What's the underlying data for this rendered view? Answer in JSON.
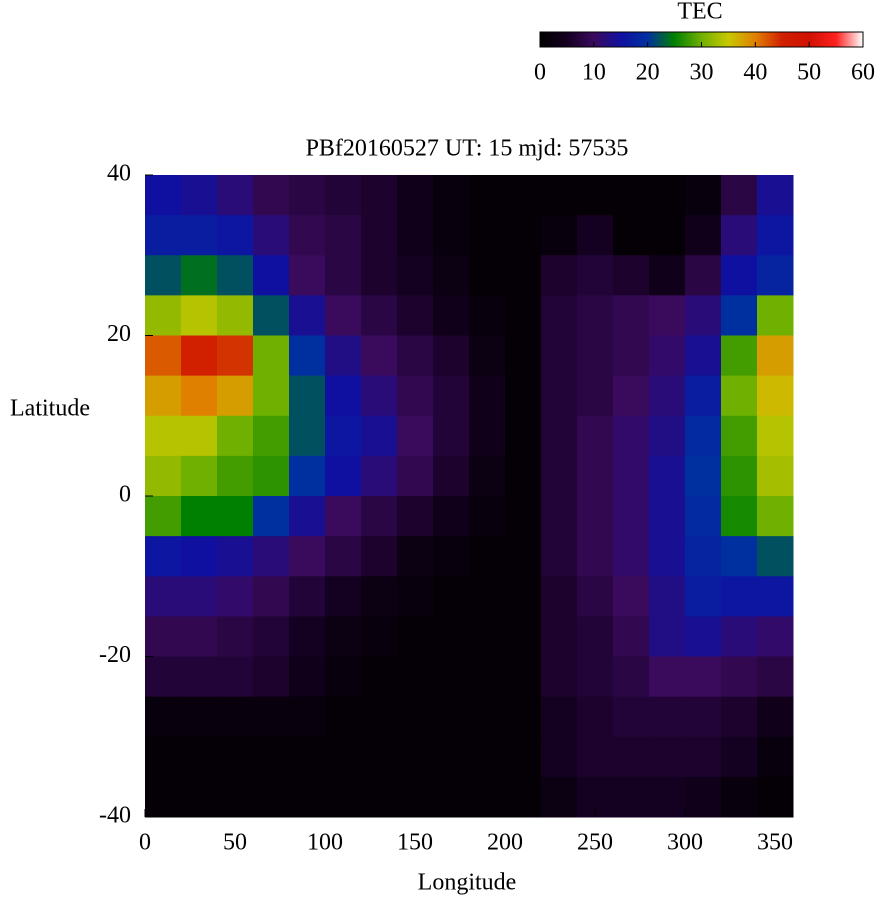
{
  "chart_data": {
    "type": "heatmap",
    "title": "PBf20160527  UT: 15  mjd: 57535",
    "x_label": "Longitude",
    "y_label": "Latitude",
    "xlim": [
      0,
      360
    ],
    "xticks": [
      0,
      50,
      100,
      150,
      200,
      250,
      300,
      350
    ],
    "ylim": [
      -40,
      40
    ],
    "yticks": [
      -40,
      -20,
      0,
      20,
      40
    ],
    "x": [
      10,
      30,
      50,
      70,
      90,
      110,
      130,
      150,
      170,
      190,
      210,
      230,
      250,
      270,
      290,
      310,
      330,
      350
    ],
    "y": [
      37.5,
      32.5,
      27.5,
      22.5,
      17.5,
      12.5,
      7.5,
      2.5,
      -2.5,
      -7.5,
      -12.5,
      -17.5,
      -22.5,
      -27.5,
      -32.5,
      -37.5
    ],
    "values": [
      [
        15,
        14,
        12,
        9,
        8,
        7,
        6,
        4,
        2,
        1,
        1,
        1,
        1,
        1,
        1,
        2,
        8,
        14
      ],
      [
        17,
        17,
        16,
        12,
        9,
        8,
        6,
        4,
        2,
        1,
        1,
        2,
        5,
        1,
        1,
        4,
        12,
        16
      ],
      [
        22,
        24,
        22,
        15,
        10,
        8,
        6,
        5,
        3,
        1,
        1,
        6,
        7,
        6,
        4,
        8,
        15,
        18
      ],
      [
        32,
        34,
        32,
        22,
        14,
        10,
        8,
        6,
        4,
        2,
        1,
        7,
        8,
        9,
        10,
        12,
        20,
        30
      ],
      [
        42,
        45,
        44,
        30,
        20,
        13,
        10,
        8,
        6,
        3,
        1,
        7,
        8,
        9,
        11,
        14,
        28,
        38
      ],
      [
        38,
        40,
        38,
        30,
        22,
        15,
        12,
        9,
        7,
        4,
        1,
        7,
        8,
        10,
        12,
        17,
        30,
        36
      ],
      [
        34,
        34,
        30,
        28,
        22,
        16,
        14,
        10,
        7,
        4,
        1,
        7,
        9,
        11,
        13,
        19,
        28,
        34
      ],
      [
        32,
        30,
        28,
        27,
        20,
        15,
        12,
        9,
        6,
        3,
        1,
        7,
        9,
        11,
        14,
        20,
        27,
        33
      ],
      [
        28,
        25,
        25,
        20,
        14,
        10,
        8,
        6,
        4,
        2,
        1,
        7,
        9,
        11,
        14,
        19,
        26,
        30
      ],
      [
        16,
        15,
        14,
        12,
        10,
        8,
        6,
        3,
        2,
        1,
        1,
        7,
        9,
        11,
        14,
        18,
        20,
        22
      ],
      [
        12,
        12,
        11,
        9,
        7,
        5,
        3,
        2,
        1,
        1,
        1,
        6,
        8,
        10,
        13,
        17,
        16,
        16
      ],
      [
        9,
        9,
        8,
        7,
        5,
        3,
        2,
        1,
        1,
        1,
        1,
        6,
        7,
        9,
        13,
        14,
        12,
        11
      ],
      [
        7,
        7,
        7,
        6,
        4,
        2,
        1,
        1,
        1,
        1,
        1,
        6,
        7,
        8,
        10,
        10,
        9,
        8
      ],
      [
        2,
        2,
        2,
        2,
        2,
        1,
        1,
        1,
        1,
        1,
        1,
        5,
        6,
        7,
        7,
        7,
        6,
        4
      ],
      [
        1,
        1,
        1,
        1,
        1,
        1,
        1,
        1,
        1,
        1,
        1,
        5,
        6,
        6,
        6,
        6,
        5,
        2
      ],
      [
        1,
        1,
        1,
        1,
        1,
        1,
        1,
        1,
        1,
        1,
        1,
        3,
        5,
        5,
        5,
        4,
        2,
        1
      ]
    ],
    "colorbar": {
      "label": "TEC",
      "lim": [
        0,
        60
      ],
      "ticks": [
        0,
        10,
        20,
        30,
        40,
        50,
        60
      ],
      "colors": [
        "#000000",
        "#140020",
        "#3a0a5c",
        "#1010a0",
        "#0030a0",
        "#008000",
        "#70b000",
        "#c8c800",
        "#e08000",
        "#d02000",
        "#d01000",
        "#ff2020",
        "#ffffff"
      ]
    }
  }
}
